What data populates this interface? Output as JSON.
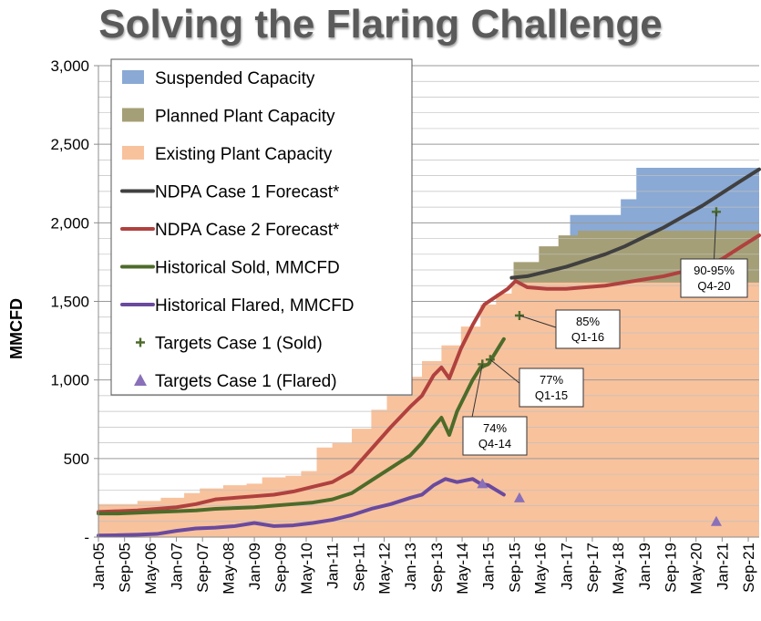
{
  "title": "Solving the Flaring Challenge",
  "chart_data": {
    "type": "area",
    "title": "Solving the Flaring Challenge",
    "xlabel": "",
    "ylabel": "MMCFD",
    "ylim": [
      0,
      3000
    ],
    "xlim": [
      2005.0,
      2021.95
    ],
    "y_ticks": [
      0,
      500,
      1000,
      1500,
      2000,
      2500,
      3000
    ],
    "y_tick_labels": [
      "-",
      "500",
      "1,000",
      "1,500",
      "2,000",
      "2,500",
      "3,000"
    ],
    "x_tick_labels": [
      "Jan-05",
      "Sep-05",
      "May-06",
      "Jan-07",
      "Sep-07",
      "May-08",
      "Jan-09",
      "Sep-09",
      "May-10",
      "Jan-11",
      "Sep-11",
      "May-12",
      "Jan-13",
      "Sep-13",
      "May-14",
      "Jan-15",
      "Sep-15",
      "May-16",
      "Jan-17",
      "Sep-17",
      "May-18",
      "Jan-19",
      "Sep-19",
      "May-20",
      "Jan-21",
      "Sep-21"
    ],
    "x_tick_values": [
      2005.0,
      2005.67,
      2006.33,
      2007.0,
      2007.67,
      2008.33,
      2009.0,
      2009.67,
      2010.33,
      2011.0,
      2011.67,
      2012.33,
      2013.0,
      2013.67,
      2014.33,
      2015.0,
      2015.67,
      2016.33,
      2017.0,
      2017.67,
      2018.33,
      2019.0,
      2019.67,
      2020.33,
      2021.0,
      2021.67
    ],
    "legend": {
      "position": "top-left",
      "items": [
        {
          "label": "Suspended Capacity",
          "kind": "patch",
          "color": "#8aa9d4"
        },
        {
          "label": "Planned Plant Capacity",
          "kind": "patch",
          "color": "#a59f77"
        },
        {
          "label": "Existing Plant Capacity",
          "kind": "patch",
          "color": "#f8c29d"
        },
        {
          "label": "NDPA Case 1 Forecast*",
          "kind": "line",
          "color": "#404040"
        },
        {
          "label": "NDPA Case 2 Forecast*",
          "kind": "line",
          "color": "#b0413e"
        },
        {
          "label": "Historical Sold, MMCFD",
          "kind": "line",
          "color": "#4d6b2a"
        },
        {
          "label": "Historical Flared, MMCFD",
          "kind": "line",
          "color": "#6a4a9e"
        },
        {
          "label": "Targets Case 1 (Sold)",
          "kind": "plus",
          "color": "#4d6b2a"
        },
        {
          "label": "Targets Case 1 (Flared)",
          "kind": "triangle",
          "color": "#8a70b8"
        }
      ]
    },
    "series": [
      {
        "name": "Existing Plant Capacity",
        "kind": "step_area",
        "color": "#f8c29d",
        "x": [
          2005.0,
          2006.0,
          2006.6,
          2007.2,
          2007.6,
          2008.2,
          2008.8,
          2009.2,
          2009.8,
          2010.2,
          2010.6,
          2011.0,
          2011.5,
          2012.0,
          2012.4,
          2012.9,
          2013.3,
          2013.8,
          2014.3,
          2014.8,
          2015.2,
          2015.6,
          2016.5,
          2021.95
        ],
        "values": [
          210,
          230,
          250,
          280,
          310,
          330,
          340,
          380,
          390,
          420,
          570,
          600,
          690,
          810,
          900,
          1020,
          1120,
          1220,
          1340,
          1480,
          1550,
          1620,
          1620,
          1620
        ]
      },
      {
        "name": "Planned Plant Capacity",
        "kind": "step_area",
        "color": "#a59f77",
        "x": [
          2015.65,
          2016.3,
          2016.8,
          2017.3,
          2017.8,
          2018.3,
          2018.8,
          2019.5,
          2020.2,
          2021.95
        ],
        "values": [
          1750,
          1850,
          1920,
          1950,
          1950,
          1950,
          1950,
          1950,
          1950,
          1950
        ]
      },
      {
        "name": "Suspended Capacity",
        "kind": "step_area",
        "color": "#8aa9d4",
        "x": [
          2017.1,
          2017.7,
          2018.4,
          2018.8,
          2021.95
        ],
        "values": [
          2050,
          2050,
          2150,
          2350,
          2350
        ]
      },
      {
        "name": "NDPA Case 1 Forecast*",
        "kind": "line",
        "color": "#404040",
        "x": [
          2015.6,
          2016.0,
          2016.5,
          2017.0,
          2017.5,
          2018.0,
          2018.5,
          2019.0,
          2019.5,
          2020.0,
          2020.5,
          2021.0,
          2021.5,
          2021.95
        ],
        "values": [
          1650,
          1660,
          1690,
          1720,
          1760,
          1800,
          1850,
          1910,
          1970,
          2040,
          2110,
          2190,
          2270,
          2340
        ]
      },
      {
        "name": "NDPA Case 2 Forecast*",
        "kind": "line",
        "color": "#b0413e",
        "x": [
          2005.0,
          2005.5,
          2006.0,
          2006.5,
          2007.0,
          2007.5,
          2008.0,
          2008.5,
          2009.0,
          2009.5,
          2010.0,
          2010.5,
          2011.0,
          2011.5,
          2012.0,
          2012.5,
          2013.0,
          2013.3,
          2013.6,
          2013.8,
          2014.0,
          2014.3,
          2014.6,
          2014.9,
          2015.2,
          2015.5,
          2015.7,
          2016.0,
          2016.5,
          2017.0,
          2017.5,
          2018.0,
          2018.5,
          2019.0,
          2019.5,
          2020.0,
          2020.5,
          2021.0,
          2021.5,
          2021.95
        ],
        "values": [
          160,
          165,
          170,
          180,
          190,
          210,
          240,
          250,
          260,
          270,
          290,
          320,
          350,
          420,
          560,
          700,
          830,
          900,
          1030,
          1080,
          1010,
          1200,
          1350,
          1480,
          1530,
          1580,
          1630,
          1590,
          1580,
          1580,
          1590,
          1600,
          1620,
          1640,
          1660,
          1690,
          1720,
          1770,
          1850,
          1920
        ]
      },
      {
        "name": "Historical Sold, MMCFD",
        "kind": "line",
        "color": "#4d6b2a",
        "x": [
          2005.0,
          2005.5,
          2006.0,
          2006.5,
          2007.0,
          2007.5,
          2008.0,
          2008.5,
          2009.0,
          2009.5,
          2010.0,
          2010.5,
          2011.0,
          2011.5,
          2012.0,
          2012.5,
          2013.0,
          2013.3,
          2013.6,
          2013.8,
          2014.0,
          2014.2,
          2014.4,
          2014.6,
          2014.8,
          2015.0,
          2015.2,
          2015.4
        ],
        "values": [
          150,
          150,
          155,
          160,
          165,
          170,
          180,
          185,
          190,
          200,
          210,
          220,
          240,
          280,
          360,
          440,
          520,
          600,
          700,
          760,
          650,
          800,
          900,
          1000,
          1080,
          1100,
          1180,
          1260
        ]
      },
      {
        "name": "Historical Flared, MMCFD",
        "kind": "line",
        "color": "#6a4a9e",
        "x": [
          2005.0,
          2005.5,
          2006.0,
          2006.5,
          2007.0,
          2007.5,
          2008.0,
          2008.5,
          2009.0,
          2009.5,
          2010.0,
          2010.5,
          2011.0,
          2011.5,
          2012.0,
          2012.5,
          2013.0,
          2013.3,
          2013.6,
          2013.9,
          2014.2,
          2014.4,
          2014.6,
          2014.8,
          2015.0,
          2015.2,
          2015.4
        ],
        "values": [
          10,
          12,
          15,
          20,
          40,
          55,
          60,
          70,
          90,
          70,
          75,
          90,
          110,
          140,
          180,
          210,
          250,
          270,
          330,
          370,
          350,
          360,
          370,
          340,
          330,
          300,
          270
        ]
      }
    ],
    "targets_sold": [
      {
        "x": 2014.85,
        "y": 1100
      },
      {
        "x": 2015.05,
        "y": 1130
      },
      {
        "x": 2015.8,
        "y": 1410
      },
      {
        "x": 2020.85,
        "y": 2070
      }
    ],
    "targets_flared": [
      {
        "x": 2014.85,
        "y": 340
      },
      {
        "x": 2015.8,
        "y": 250
      },
      {
        "x": 2020.85,
        "y": 100
      }
    ],
    "annotations": [
      {
        "line1": "74%",
        "line2": "Q4-14",
        "x": 2014.85,
        "y": 1100
      },
      {
        "line1": "77%",
        "line2": "Q1-15",
        "x": 2015.05,
        "y": 1130
      },
      {
        "line1": "85%",
        "line2": "Q1-16",
        "x": 2015.8,
        "y": 1410
      },
      {
        "line1": "90-95%",
        "line2": "Q4-20",
        "x": 2020.85,
        "y": 2070
      }
    ]
  }
}
